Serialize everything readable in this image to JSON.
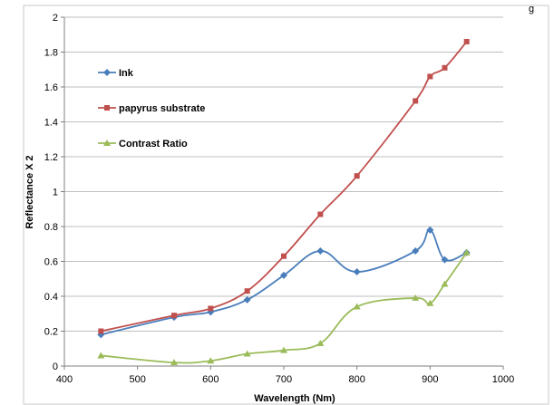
{
  "chart_data": {
    "type": "line",
    "header_fragment": "g",
    "xlabel": "Wavelength (Nm)",
    "ylabel": "Reflectance X 2",
    "xlim": [
      400,
      1000
    ],
    "ylim": [
      0,
      2
    ],
    "xticks": [
      400,
      500,
      600,
      700,
      800,
      900,
      1000
    ],
    "yticks": [
      0,
      0.2,
      0.4,
      0.6,
      0.8,
      1,
      1.2,
      1.4,
      1.6,
      1.8,
      2
    ],
    "ytick_labels": [
      "0",
      "0.2",
      "0.4",
      "0.6",
      "0.8",
      "1",
      "1.2",
      "1.4",
      "1.6",
      "1.8",
      "2"
    ],
    "grid": "horizontal",
    "legend_position": "top-left inside",
    "series": [
      {
        "name": "Ink",
        "color": "#4a7ebb",
        "marker": "diamond",
        "x": [
          450,
          550,
          600,
          650,
          700,
          750,
          800,
          880,
          900,
          920,
          950
        ],
        "y": [
          0.18,
          0.28,
          0.31,
          0.38,
          0.52,
          0.66,
          0.54,
          0.66,
          0.78,
          0.61,
          0.65
        ]
      },
      {
        "name": "papyrus substrate",
        "color": "#c0504d",
        "marker": "square",
        "x": [
          450,
          550,
          600,
          650,
          700,
          750,
          800,
          880,
          900,
          920,
          950
        ],
        "y": [
          0.2,
          0.29,
          0.33,
          0.43,
          0.63,
          0.87,
          1.09,
          1.52,
          1.66,
          1.71,
          1.86
        ]
      },
      {
        "name": "Contrast Ratio",
        "color": "#9bbb59",
        "marker": "triangle",
        "x": [
          450,
          550,
          600,
          650,
          700,
          750,
          800,
          880,
          900,
          920,
          950
        ],
        "y": [
          0.06,
          0.02,
          0.03,
          0.07,
          0.09,
          0.13,
          0.34,
          0.39,
          0.36,
          0.47,
          0.65
        ]
      }
    ]
  }
}
